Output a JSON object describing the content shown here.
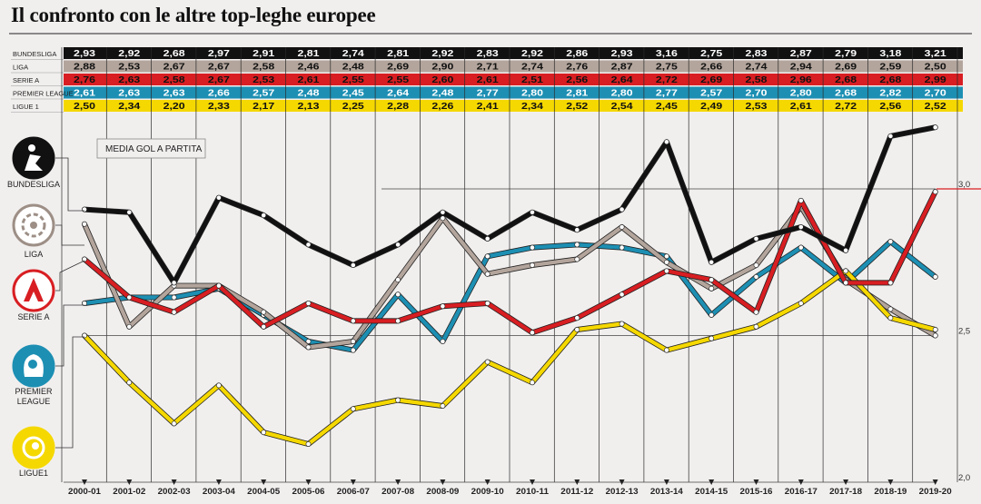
{
  "page": {
    "title": "Il confronto con le altre top-leghe europee"
  },
  "chart_data": {
    "type": "line",
    "title": "Il confronto con le altre top-leghe europee",
    "legend_label": "MEDIA GOL A PARTITA",
    "ylim": [
      2.0,
      3.25
    ],
    "y_ticks": [
      {
        "value": 3.0,
        "label": "3,0"
      },
      {
        "value": 2.5,
        "label": "2,5"
      },
      {
        "value": 2.0,
        "label": "2,0"
      }
    ],
    "categories": [
      "2000-01",
      "2001-02",
      "2002-03",
      "2003-04",
      "2004-05",
      "2005-06",
      "2006-07",
      "2007-08",
      "2008-09",
      "2009-10",
      "2010-11",
      "2011-12",
      "2012-13",
      "2013-14",
      "2014-15",
      "2015-16",
      "2016-17",
      "2017-18",
      "2018-19",
      "2019-20"
    ],
    "series": [
      {
        "name": "BUNDESLIGA",
        "legend_label": "BUNDESLIGA",
        "color": "#111111",
        "text_color": "#ffffff",
        "values": [
          2.93,
          2.92,
          2.68,
          2.97,
          2.91,
          2.81,
          2.74,
          2.81,
          2.92,
          2.83,
          2.92,
          2.86,
          2.93,
          3.16,
          2.75,
          2.83,
          2.87,
          2.79,
          3.18,
          3.21
        ],
        "labels": [
          "2,93",
          "2,92",
          "2,68",
          "2,97",
          "2,91",
          "2,81",
          "2,74",
          "2,81",
          "2,92",
          "2,83",
          "2,92",
          "2,86",
          "2,93",
          "3,16",
          "2,75",
          "2,83",
          "2,87",
          "2,79",
          "3,18",
          "3,21"
        ]
      },
      {
        "name": "LIGA",
        "legend_label": "LIGA",
        "color": "#b3a59c",
        "text_color": "#111111",
        "values": [
          2.88,
          2.53,
          2.67,
          2.67,
          2.58,
          2.46,
          2.48,
          2.69,
          2.9,
          2.71,
          2.74,
          2.76,
          2.87,
          2.75,
          2.66,
          2.74,
          2.94,
          2.69,
          2.59,
          2.5
        ],
        "labels": [
          "2,88",
          "2,53",
          "2,67",
          "2,67",
          "2,58",
          "2,46",
          "2,48",
          "2,69",
          "2,90",
          "2,71",
          "2,74",
          "2,76",
          "2,87",
          "2,75",
          "2,66",
          "2,74",
          "2,94",
          "2,69",
          "2,59",
          "2,50"
        ]
      },
      {
        "name": "SERIE A",
        "legend_label": "SERIE A",
        "color": "#d81e22",
        "text_color": "#111111",
        "values": [
          2.76,
          2.63,
          2.58,
          2.67,
          2.53,
          2.61,
          2.55,
          2.55,
          2.6,
          2.61,
          2.51,
          2.56,
          2.64,
          2.72,
          2.69,
          2.58,
          2.96,
          2.68,
          2.68,
          2.99
        ],
        "labels": [
          "2,76",
          "2,63",
          "2,58",
          "2,67",
          "2,53",
          "2,61",
          "2,55",
          "2,55",
          "2,60",
          "2,61",
          "2,51",
          "2,56",
          "2,64",
          "2,72",
          "2,69",
          "2,58",
          "2,96",
          "2,68",
          "2,68",
          "2,99"
        ]
      },
      {
        "name": "PREMIER LEAGUE",
        "legend_label": "PREMIER LEAGUE",
        "color": "#1d8fb3",
        "text_color": "#ffffff",
        "values": [
          2.61,
          2.63,
          2.63,
          2.66,
          2.57,
          2.48,
          2.45,
          2.64,
          2.48,
          2.77,
          2.8,
          2.81,
          2.8,
          2.77,
          2.57,
          2.7,
          2.8,
          2.68,
          2.82,
          2.7
        ],
        "labels": [
          "2,61",
          "2,63",
          "2,63",
          "2,66",
          "2,57",
          "2,48",
          "2,45",
          "2,64",
          "2,48",
          "2,77",
          "2,80",
          "2,81",
          "2,80",
          "2,77",
          "2,57",
          "2,70",
          "2,80",
          "2,68",
          "2,82",
          "2,70"
        ]
      },
      {
        "name": "LIGUE 1",
        "legend_label": "LIGUE1",
        "color": "#f5d800",
        "text_color": "#111111",
        "values": [
          2.5,
          2.34,
          2.2,
          2.33,
          2.17,
          2.13,
          2.25,
          2.28,
          2.26,
          2.41,
          2.34,
          2.52,
          2.54,
          2.45,
          2.49,
          2.53,
          2.61,
          2.72,
          2.56,
          2.52
        ],
        "labels": [
          "2,50",
          "2,34",
          "2,20",
          "2,33",
          "2,17",
          "2,13",
          "2,25",
          "2,28",
          "2,26",
          "2,41",
          "2,34",
          "2,52",
          "2,54",
          "2,45",
          "2,49",
          "2,53",
          "2,61",
          "2,72",
          "2,56",
          "2,52"
        ]
      }
    ],
    "logos": [
      {
        "name": "BUNDESLIGA",
        "label": "BUNDESLIGA",
        "line2": ""
      },
      {
        "name": "LIGA",
        "label": "LIGA",
        "line2": ""
      },
      {
        "name": "SERIE A",
        "label": "SERIE A",
        "line2": ""
      },
      {
        "name": "PREMIER LEAGUE",
        "label": "PREMIER",
        "line2": "LEAGUE"
      },
      {
        "name": "LIGUE 1",
        "label": "LIGUE1",
        "line2": ""
      }
    ],
    "table_row_labels": [
      "BUNDESLIGA",
      "LIGA",
      "SERIE A",
      "PREMIER LEAGUE",
      "LIGUE 1"
    ]
  }
}
